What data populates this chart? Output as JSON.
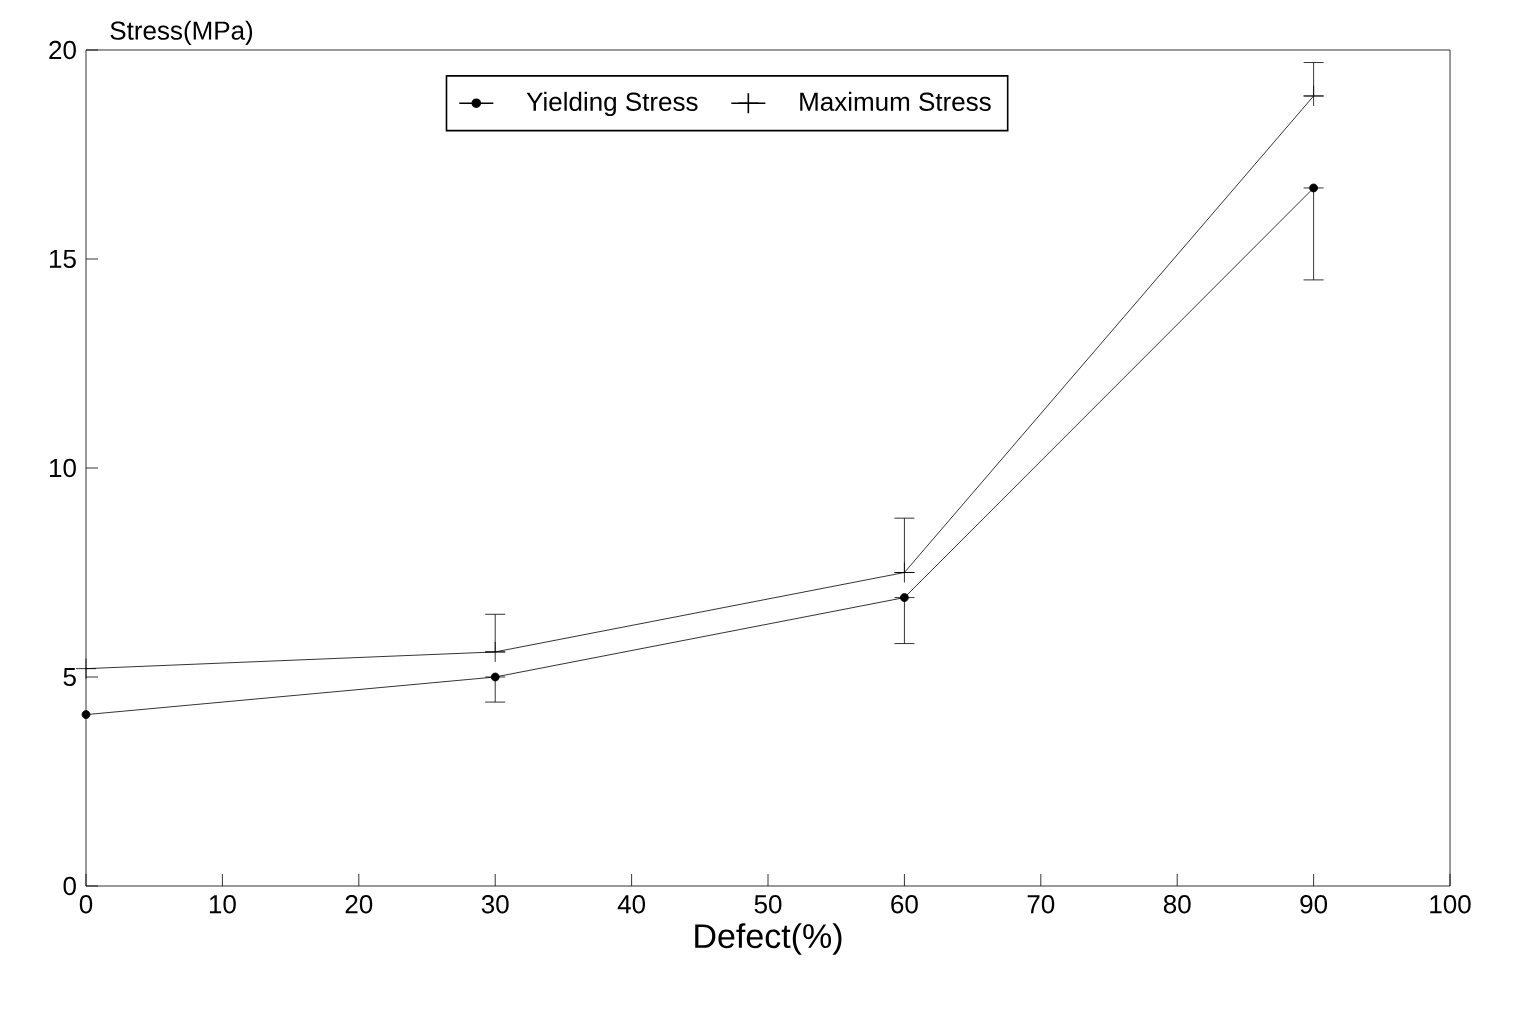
{
  "chart_data": {
    "type": "line",
    "xlabel": "Defect(%)",
    "ylabel": "Stress(MPa)",
    "x": [
      0,
      30,
      60,
      90
    ],
    "series": [
      {
        "name": "Yielding Stress",
        "color": "#000000",
        "marker": "circle",
        "values": [
          4.1,
          5.0,
          6.9,
          16.7
        ],
        "errors": [
          null,
          [
            4.4,
            5.0
          ],
          [
            5.8,
            6.9
          ],
          [
            14.5,
            16.7
          ]
        ]
      },
      {
        "name": "Maximum Stress",
        "color": "#000000",
        "marker": "cross",
        "values": [
          5.2,
          5.6,
          7.5,
          18.9
        ],
        "errors": [
          null,
          [
            5.6,
            6.5
          ],
          [
            7.5,
            8.8
          ],
          [
            18.9,
            19.7
          ]
        ]
      }
    ],
    "xlim": [
      0,
      100
    ],
    "xticks": [
      0,
      10,
      20,
      30,
      40,
      50,
      60,
      70,
      80,
      90,
      100
    ],
    "ylim": [
      0,
      20
    ],
    "yticks": [
      0,
      5,
      10,
      15,
      20
    ],
    "grid": false,
    "legend": "top",
    "line_style": "solid"
  }
}
